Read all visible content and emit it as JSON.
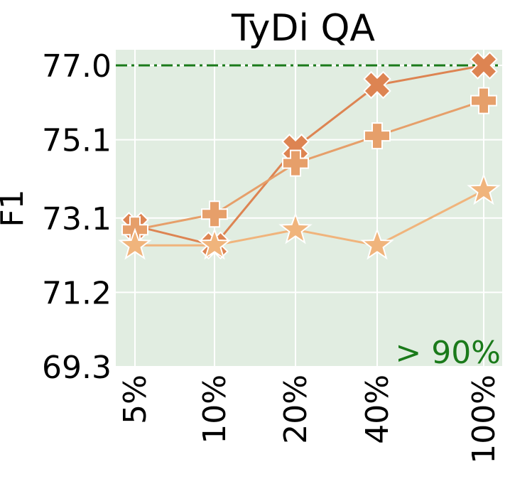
{
  "chart_data": {
    "type": "line",
    "title": "TyDi QA",
    "ylabel": "F1",
    "xlabel": "",
    "categories": [
      "5%",
      "10%",
      "20%",
      "40%",
      "100%"
    ],
    "y_ticks": [
      "69.3",
      "71.2",
      "73.1",
      "75.1",
      "77.0"
    ],
    "ylim": [
      69.3,
      77.4
    ],
    "grid": true,
    "background": "#e1ede1",
    "reference_line": {
      "value": 77.0,
      "color": "#1a7a1a",
      "style": "dash-dot"
    },
    "annotation": {
      "text": "> 90%",
      "color": "#1a7a1a"
    },
    "series": [
      {
        "marker": "x-icon",
        "color": "#dd8452",
        "values": [
          72.9,
          72.4,
          74.9,
          76.5,
          77.0
        ]
      },
      {
        "marker": "plus-icon",
        "color": "#e69f6a",
        "values": [
          72.8,
          73.2,
          74.5,
          75.2,
          76.1
        ]
      },
      {
        "marker": "star-icon",
        "color": "#f0b47c",
        "values": [
          72.4,
          72.4,
          72.8,
          72.4,
          73.8
        ]
      }
    ]
  }
}
